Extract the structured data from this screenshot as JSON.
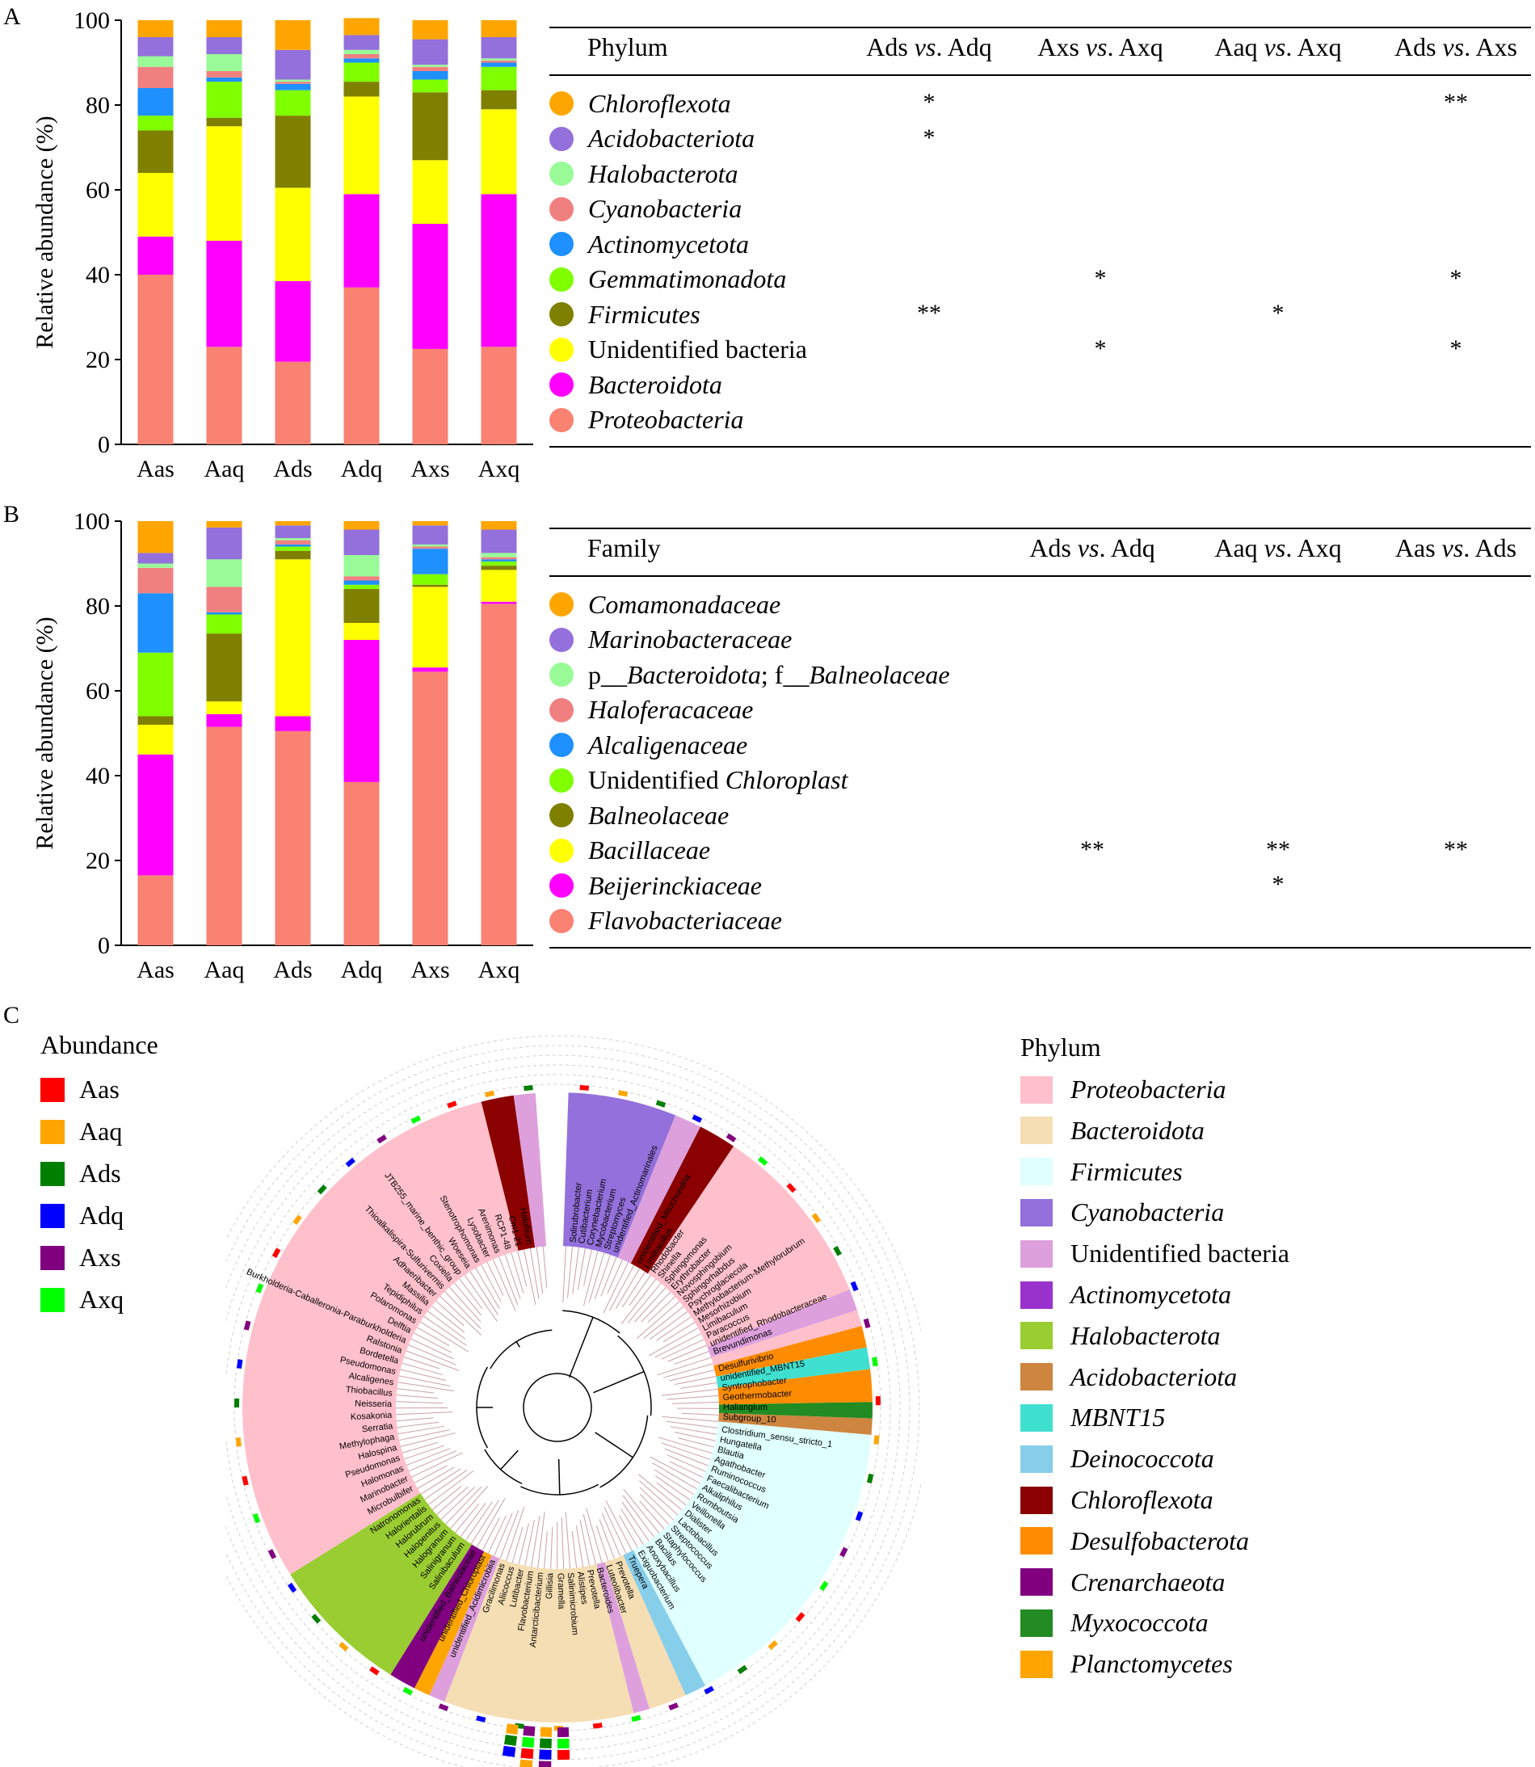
{
  "panels": {
    "A": {
      "letter": "A",
      "chart_data": {
        "type": "bar",
        "stacked": true,
        "ylabel": "Relative abundance (%)",
        "ylim": [
          0,
          100
        ],
        "yticks": [
          "0",
          "20",
          "40",
          "60",
          "80",
          "100"
        ],
        "categories": [
          "Aas",
          "Aaq",
          "Ads",
          "Adq",
          "Axs",
          "Axq"
        ],
        "series": [
          {
            "name": "Proteobacteria",
            "color": "#F98272",
            "values": [
              40,
              23,
              19.5,
              37,
              22.5,
              23
            ]
          },
          {
            "name": "Bacteroidota",
            "color": "#FF00FF",
            "values": [
              9,
              25,
              19,
              22,
              29.5,
              36
            ]
          },
          {
            "name": "Unidentified bacteria",
            "color": "#FFFF00",
            "values": [
              15,
              27,
              22,
              23,
              15,
              20
            ]
          },
          {
            "name": "Firmicutes",
            "color": "#808000",
            "values": [
              10,
              2,
              17,
              3.5,
              16,
              4.5
            ]
          },
          {
            "name": "Gemmatimonadota",
            "color": "#7FFF00",
            "values": [
              3.5,
              8.5,
              6,
              4.5,
              3,
              5.5
            ]
          },
          {
            "name": "Actinomycetota",
            "color": "#1E90FF",
            "values": [
              6.5,
              1,
              1.5,
              1,
              2,
              1
            ]
          },
          {
            "name": "Cyanobacteria",
            "color": "#F08080",
            "values": [
              5,
              1.5,
              0.5,
              1,
              1,
              0.5
            ]
          },
          {
            "name": "Halobacterota",
            "color": "#98FB98",
            "values": [
              2.5,
              4,
              0.5,
              1,
              0.5,
              0.5
            ]
          },
          {
            "name": "Acidobacteriota",
            "color": "#9370DB",
            "values": [
              4.5,
              4,
              7,
              3.5,
              6,
              5
            ]
          },
          {
            "name": "Chloroflexota",
            "color": "#FFA500",
            "values": [
              4,
              4,
              7,
              4,
              4.5,
              4
            ]
          }
        ]
      },
      "table": {
        "header": "Phylum",
        "columns": [
          "Ads vs. Adq",
          "Axs vs. Axq",
          "Aaq vs. Axq",
          "Ads vs. Axs"
        ],
        "rows": [
          {
            "name": "Chloroflexota",
            "italic": true,
            "color": "#FFA500",
            "sig": [
              "*",
              "",
              "",
              "**"
            ]
          },
          {
            "name": "Acidobacteriota",
            "italic": true,
            "color": "#9370DB",
            "sig": [
              "*",
              "",
              "",
              ""
            ]
          },
          {
            "name": "Halobacterota",
            "italic": true,
            "color": "#98FB98",
            "sig": [
              "",
              "",
              "",
              ""
            ]
          },
          {
            "name": "Cyanobacteria",
            "italic": true,
            "color": "#F08080",
            "sig": [
              "",
              "",
              "",
              ""
            ]
          },
          {
            "name": "Actinomycetota",
            "italic": true,
            "color": "#1E90FF",
            "sig": [
              "",
              "",
              "",
              ""
            ]
          },
          {
            "name": "Gemmatimonadota",
            "italic": true,
            "color": "#7FFF00",
            "sig": [
              "",
              "*",
              "",
              "*"
            ]
          },
          {
            "name": "Firmicutes",
            "italic": true,
            "color": "#808000",
            "sig": [
              "**",
              "",
              "*",
              ""
            ]
          },
          {
            "name": "Unidentified bacteria",
            "italic": false,
            "color": "#FFFF00",
            "sig": [
              "",
              "*",
              "",
              "*"
            ]
          },
          {
            "name": "Bacteroidota",
            "italic": true,
            "color": "#FF00FF",
            "sig": [
              "",
              "",
              "",
              ""
            ]
          },
          {
            "name": "Proteobacteria",
            "italic": true,
            "color": "#F98272",
            "sig": [
              "",
              "",
              "",
              ""
            ]
          }
        ]
      }
    },
    "B": {
      "letter": "B",
      "chart_data": {
        "type": "bar",
        "stacked": true,
        "ylabel": "Relative abundance (%)",
        "ylim": [
          0,
          100
        ],
        "yticks": [
          "0",
          "20",
          "40",
          "60",
          "80",
          "100"
        ],
        "categories": [
          "Aas",
          "Aaq",
          "Ads",
          "Adq",
          "Axs",
          "Axq"
        ],
        "series": [
          {
            "name": "Flavobacteriaceae",
            "color": "#F98272",
            "values": [
              16.5,
              51.5,
              50.5,
              38.5,
              64.5,
              80.5
            ]
          },
          {
            "name": "Beijerinckiaceae",
            "color": "#FF00FF",
            "values": [
              28.5,
              3,
              3.5,
              33.5,
              1,
              0.5
            ]
          },
          {
            "name": "Bacillaceae",
            "color": "#FFFF00",
            "values": [
              7,
              3,
              37,
              4,
              19,
              7.5
            ]
          },
          {
            "name": "Balneolaceae",
            "color": "#808000",
            "values": [
              2,
              16,
              2,
              8,
              0.5,
              1
            ]
          },
          {
            "name": "Unidentified Chloroplast",
            "color": "#7FFF00",
            "values": [
              15,
              4.5,
              1,
              1,
              2.5,
              1
            ]
          },
          {
            "name": "Alcaligenaceae",
            "color": "#1E90FF",
            "values": [
              14,
              0.5,
              0.5,
              1,
              6,
              0.5
            ]
          },
          {
            "name": "Haloferacaceae",
            "color": "#F08080",
            "values": [
              6,
              6,
              1,
              1,
              0.5,
              0.5
            ]
          },
          {
            "name": "p__Bacteroidota; f__Balneolaceae",
            "color": "#98FB98",
            "values": [
              1,
              6.5,
              0.5,
              5,
              0.5,
              1
            ]
          },
          {
            "name": "Marinobacteraceae",
            "color": "#9370DB",
            "values": [
              2.5,
              7.5,
              3,
              6,
              4.5,
              5.5
            ]
          },
          {
            "name": "Comamonadaceae",
            "color": "#FFA500",
            "values": [
              7.5,
              1.5,
              1,
              2,
              1,
              2
            ]
          }
        ]
      },
      "table": {
        "header": "Family",
        "columns": [
          "Ads vs. Adq",
          "Aaq vs. Axq",
          "Aas vs. Ads"
        ],
        "rows": [
          {
            "name": "Comamonadaceae",
            "italic": true,
            "color": "#FFA500",
            "sig": [
              "",
              "",
              ""
            ]
          },
          {
            "name": "Marinobacteraceae",
            "italic": true,
            "color": "#9370DB",
            "sig": [
              "",
              "",
              ""
            ]
          },
          {
            "name": "p__Bacteroidota; f__Balneolaceae",
            "italic": "mixed",
            "color": "#98FB98",
            "sig": [
              "",
              "",
              ""
            ]
          },
          {
            "name": "Haloferacaceae",
            "italic": true,
            "color": "#F08080",
            "sig": [
              "",
              "",
              ""
            ]
          },
          {
            "name": "Alcaligenaceae",
            "italic": true,
            "color": "#1E90FF",
            "sig": [
              "",
              "",
              ""
            ]
          },
          {
            "name": "Unidentified Chloroplast",
            "italic": "mixed",
            "color": "#7FFF00",
            "sig": [
              "",
              "",
              ""
            ]
          },
          {
            "name": "Balneolaceae",
            "italic": true,
            "color": "#808000",
            "sig": [
              "",
              "",
              ""
            ]
          },
          {
            "name": "Bacillaceae",
            "italic": true,
            "color": "#FFFF00",
            "sig": [
              "**",
              "**",
              "**"
            ]
          },
          {
            "name": "Beijerinckiaceae",
            "italic": true,
            "color": "#FF00FF",
            "sig": [
              "",
              "*",
              ""
            ]
          },
          {
            "name": "Flavobacteriaceae",
            "italic": true,
            "color": "#F98272",
            "sig": [
              "",
              "",
              ""
            ]
          }
        ]
      }
    },
    "C": {
      "letter": "C",
      "abundance_title": "Abundance",
      "abundance": [
        {
          "name": "Aas",
          "color": "#FF0000"
        },
        {
          "name": "Aaq",
          "color": "#FFA500"
        },
        {
          "name": "Ads",
          "color": "#007F00"
        },
        {
          "name": "Adq",
          "color": "#0000FF"
        },
        {
          "name": "Axs",
          "color": "#800080"
        },
        {
          "name": "Axq",
          "color": "#00FF00"
        }
      ],
      "phylum_title": "Phylum",
      "phyla": [
        {
          "name": "Proteobacteria",
          "italic": true,
          "color": "#FFC0CB"
        },
        {
          "name": "Bacteroidota",
          "italic": true,
          "color": "#F5DEB3"
        },
        {
          "name": "Firmicutes",
          "italic": true,
          "color": "#E0FFFF"
        },
        {
          "name": "Cyanobacteria",
          "italic": true,
          "color": "#9370DB"
        },
        {
          "name": "Unidentified bacteria",
          "italic": false,
          "color": "#DDA0DD"
        },
        {
          "name": "Actinomycetota",
          "italic": true,
          "color": "#9932CC"
        },
        {
          "name": "Halobacterota",
          "italic": true,
          "color": "#9ACD32"
        },
        {
          "name": "Acidobacteriota",
          "italic": true,
          "color": "#CD853F"
        },
        {
          "name": "MBNT15",
          "italic": true,
          "color": "#40E0D0"
        },
        {
          "name": "Deinococcota",
          "italic": true,
          "color": "#87CEEB"
        },
        {
          "name": "Chloroflexota",
          "italic": true,
          "color": "#8B0000"
        },
        {
          "name": "Desulfobacterota",
          "italic": true,
          "color": "#FF8C00"
        },
        {
          "name": "Crenarchaeota",
          "italic": true,
          "color": "#800080"
        },
        {
          "name": "Myxococcota",
          "italic": true,
          "color": "#228B22"
        },
        {
          "name": "Planctomycetes",
          "italic": true,
          "color": "#FFA500"
        }
      ],
      "tree_labels": {
        "proteobacteria": [
          "Microbulbifer",
          "Marinobacter",
          "Halomonas",
          "Pseudomonas",
          "Halospina",
          "Methylophaga",
          "Serratia",
          "Kosakonia",
          "Neisseria",
          "Thiobacillus",
          "Alcaligenes",
          "Pseudomonas",
          "Bordetella",
          "Ralstonia",
          "Burkholderia-Caballeronia-Paraburkholderia",
          "Delftia",
          "Polaromonas",
          "Tepidiphilus",
          "Massilia",
          "Adhaeribacter",
          "Thioalkalispira-Sulfurivermis",
          "Coxiella",
          "JTB255_marine_benthic_group",
          "Woeseia",
          "Stenotrophomonas",
          "Lysobacter",
          "Arenimonas",
          "RCP1-48",
          "Cm1-21",
          "Halofilum"
        ],
        "proteobacteria_right": [
          "unidentified_Mitochondria",
          "Limibacillus",
          "Rhodobacter",
          "Shinella",
          "Sphingomonas",
          "Erythrobacter",
          "Novosphingobium",
          "Sphingorhabdus",
          "Psychroglaciecola",
          "Methylobacterium-Methylorubrum",
          "Mesorhizobium",
          "Limibaculum",
          "Paracoccus",
          "unidentified_Rhodobacteraceae",
          "Brevundimonas"
        ],
        "halobacterota": [
          "Salinibaculum",
          "Salinigranum",
          "Halogranum",
          "Halopenitus",
          "Halorubrum",
          "Halorientalis",
          "Natronomonas"
        ],
        "bacteroidota": [
          "Prevotella",
          "Luteolibacter",
          "Bacteroides",
          "Prevotella",
          "Alistipes",
          "Salinimicrobium",
          "Gramella",
          "Gillisia",
          "Antarcticibacterium",
          "Flavobacterium",
          "Lutibacter",
          "Aliicoccus",
          "Gracilimonas"
        ],
        "firmicutes": [
          "Clostridium_sensu_stricto_1",
          "Hungatella",
          "Blautia",
          "Agathobacter",
          "Ruminococcus",
          "Faecalibacterium",
          "Alkaliphilus",
          "Romboutsia",
          "Veillonella",
          "Dialister",
          "Lactobacillus",
          "Streptococcus",
          "Staphylococcus",
          "Bacillus",
          "Anoxybacillus",
          "Exiguobacterium"
        ],
        "actino": [
          "Solirubrobacter",
          "Cutibacterium",
          "Corynebacterium",
          "Mycobacterium",
          "Streptomyces",
          "unidentified_Actinomarinales"
        ],
        "misc": [
          "Desulfurivibrio",
          "unidentified_MBNT15",
          "Syntrophobacter",
          "Geothermobacter",
          "Haliangium",
          "Subgroup_10",
          "unidentified_Acidimicrobiia",
          "unidentified_Chloroplast",
          "unidentified_Balneolaceae",
          "Truepera"
        ]
      }
    }
  }
}
